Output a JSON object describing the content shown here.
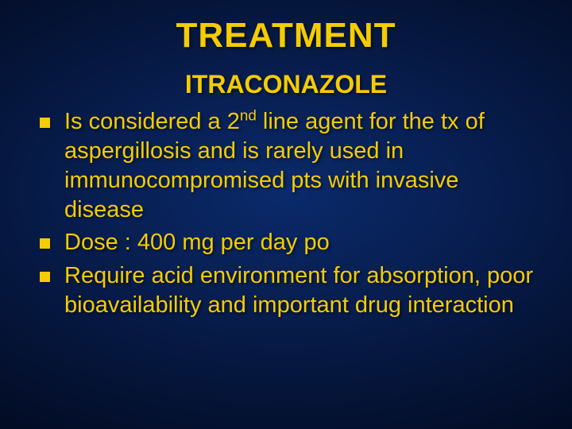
{
  "background": {
    "gradient_center": "#0a2a6b",
    "gradient_mid": "#081f52",
    "gradient_outer": "#05153a",
    "gradient_edge": "#020a20"
  },
  "text_color": "#f5cc00",
  "title": "TREATMENT",
  "title_fontsize": 44,
  "subtitle": "ITRACONAZOLE",
  "subtitle_fontsize": 32,
  "body_fontsize": 29,
  "bullet_marker_color": "#f5cc00",
  "bullet_marker_size": 13,
  "bullets": [
    {
      "pre": "Is considered a 2",
      "sup": "nd",
      "post": " line agent for the tx of aspergillosis and is rarely used in immunocompromised pts with invasive disease"
    },
    {
      "pre": " Dose : 400 mg per day po",
      "sup": "",
      "post": ""
    },
    {
      "pre": "Require acid environment for absorption, poor bioavailability and important drug interaction",
      "sup": "",
      "post": ""
    }
  ]
}
